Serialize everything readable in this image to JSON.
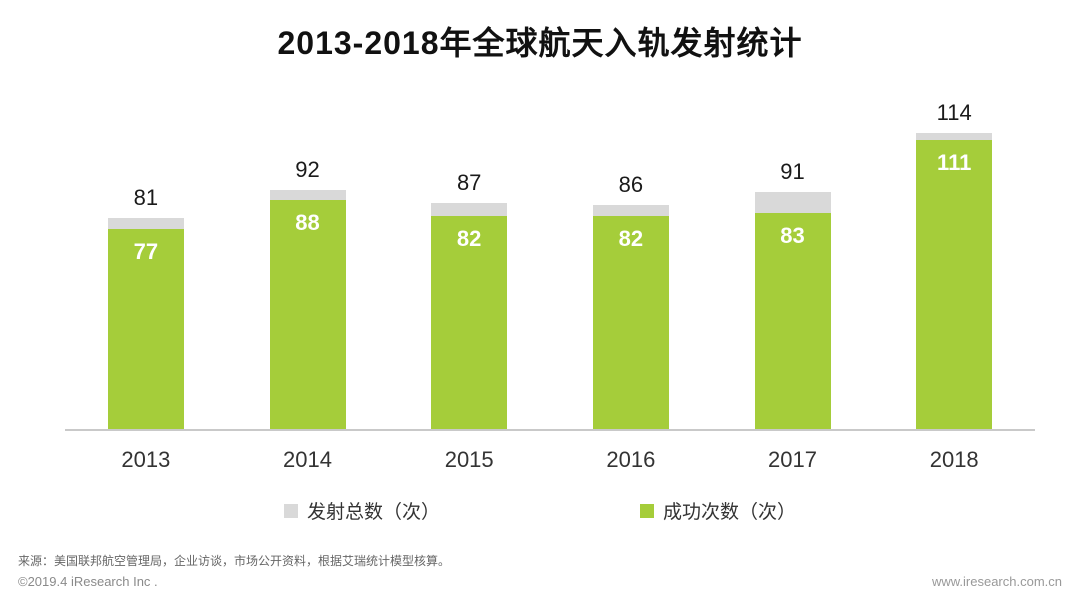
{
  "title": "2013-2018年全球航天入轨发射统计",
  "chart_data": {
    "type": "bar",
    "stacked": true,
    "title": "2013-2018年全球航天入轨发射统计",
    "categories": [
      "2013",
      "2014",
      "2015",
      "2016",
      "2017",
      "2018"
    ],
    "series": [
      {
        "name": "发射总数（次）",
        "color": "#d9d9d9",
        "values": [
          81,
          92,
          87,
          86,
          91,
          114
        ]
      },
      {
        "name": "成功次数（次）",
        "color": "#a5cd3a",
        "values": [
          77,
          88,
          82,
          82,
          83,
          111
        ]
      }
    ],
    "xlabel": "",
    "ylabel": "",
    "ylim": [
      0,
      120
    ],
    "grid": false,
    "legend_position": "bottom",
    "value_labels": {
      "total_above_bar": true,
      "success_inside_bar": true
    }
  },
  "legend": {
    "items": [
      {
        "label": "发射总数（次）",
        "color": "#d9d9d9"
      },
      {
        "label": "成功次数（次）",
        "color": "#a5cd3a"
      }
    ]
  },
  "footer": {
    "source": "来源：美国联邦航空管理局，企业访谈，市场公开资料，根据艾瑞统计模型核算。",
    "copyright": "©2019.4 iResearch Inc .",
    "website": "www.iresearch.com.cn"
  }
}
